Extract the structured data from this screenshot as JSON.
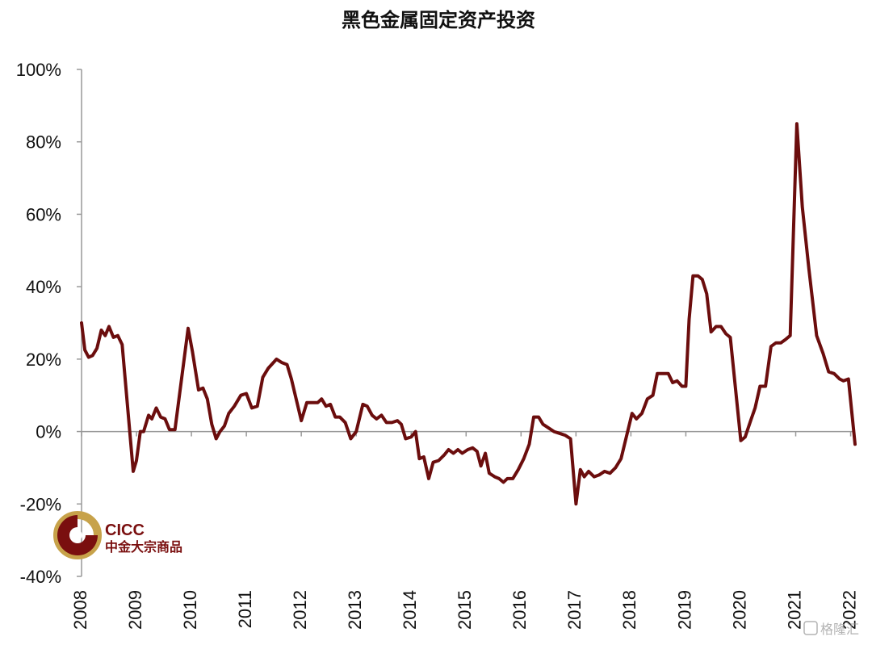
{
  "chart_data": {
    "type": "line",
    "title": "黑色金属固定资产投资",
    "xlabel": "",
    "ylabel": "",
    "y_unit": "%",
    "ylim": [
      -40,
      100
    ],
    "y_ticks": [
      100,
      80,
      60,
      40,
      20,
      0,
      -20,
      -40
    ],
    "y_tick_labels": [
      "100%",
      "80%",
      "60%",
      "40%",
      "20%",
      "0%",
      "-20%",
      "-40%"
    ],
    "x_ticks": [
      2008,
      2009,
      2010,
      2011,
      2012,
      2013,
      2014,
      2015,
      2016,
      2017,
      2018,
      2019,
      2020,
      2021,
      2022
    ],
    "x_tick_labels": [
      "2008",
      "2009",
      "2010",
      "2011",
      "2012",
      "2013",
      "2014",
      "2015",
      "2016",
      "2017",
      "2018",
      "2019",
      "2020",
      "2021",
      "2022"
    ],
    "xlim": [
      2008,
      2022.08
    ],
    "grid": false,
    "line_color": "#6b0d0d",
    "series": [
      {
        "name": "",
        "points": [
          [
            2008.0,
            30
          ],
          [
            2008.06,
            22.5
          ],
          [
            2008.13,
            20.5
          ],
          [
            2008.2,
            21
          ],
          [
            2008.28,
            23
          ],
          [
            2008.36,
            28
          ],
          [
            2008.43,
            26.5
          ],
          [
            2008.5,
            29
          ],
          [
            2008.58,
            26
          ],
          [
            2008.66,
            26.5
          ],
          [
            2008.74,
            24
          ],
          [
            2008.94,
            -11
          ],
          [
            2009.0,
            -8
          ],
          [
            2009.07,
            0
          ],
          [
            2009.13,
            0
          ],
          [
            2009.22,
            4.5
          ],
          [
            2009.28,
            3.5
          ],
          [
            2009.36,
            6.5
          ],
          [
            2009.44,
            4
          ],
          [
            2009.52,
            3.5
          ],
          [
            2009.6,
            0.5
          ],
          [
            2009.7,
            0.5
          ],
          [
            2009.94,
            28.5
          ],
          [
            2010.02,
            22
          ],
          [
            2010.13,
            11.5
          ],
          [
            2010.21,
            12
          ],
          [
            2010.29,
            9
          ],
          [
            2010.37,
            2
          ],
          [
            2010.45,
            -2
          ],
          [
            2010.52,
            0
          ],
          [
            2010.6,
            1.5
          ],
          [
            2010.68,
            5
          ],
          [
            2010.78,
            7
          ],
          [
            2010.9,
            10
          ],
          [
            2011.0,
            10.5
          ],
          [
            2011.1,
            6.5
          ],
          [
            2011.2,
            7
          ],
          [
            2011.3,
            15
          ],
          [
            2011.4,
            17.5
          ],
          [
            2011.55,
            20
          ],
          [
            2011.65,
            19
          ],
          [
            2011.74,
            18.5
          ],
          [
            2011.82,
            14.5
          ],
          [
            2012.0,
            3
          ],
          [
            2012.1,
            8
          ],
          [
            2012.21,
            8
          ],
          [
            2012.3,
            8
          ],
          [
            2012.37,
            9
          ],
          [
            2012.45,
            7
          ],
          [
            2012.53,
            7.5
          ],
          [
            2012.62,
            4
          ],
          [
            2012.7,
            4
          ],
          [
            2012.8,
            2.5
          ],
          [
            2012.9,
            -2
          ],
          [
            2013.0,
            0
          ],
          [
            2013.12,
            7.5
          ],
          [
            2013.2,
            7
          ],
          [
            2013.29,
            4.5
          ],
          [
            2013.37,
            3.5
          ],
          [
            2013.46,
            4.5
          ],
          [
            2013.55,
            2.5
          ],
          [
            2013.65,
            2.5
          ],
          [
            2013.75,
            3
          ],
          [
            2013.82,
            2
          ],
          [
            2013.9,
            -2
          ],
          [
            2014.0,
            -1.5
          ],
          [
            2014.08,
            0
          ],
          [
            2014.15,
            -7.5
          ],
          [
            2014.23,
            -7
          ],
          [
            2014.32,
            -13
          ],
          [
            2014.4,
            -8.5
          ],
          [
            2014.5,
            -8
          ],
          [
            2014.6,
            -6.5
          ],
          [
            2014.68,
            -5
          ],
          [
            2014.77,
            -6
          ],
          [
            2014.85,
            -5
          ],
          [
            2014.93,
            -6
          ],
          [
            2015.03,
            -5
          ],
          [
            2015.12,
            -4.5
          ],
          [
            2015.2,
            -5.5
          ],
          [
            2015.27,
            -9.5
          ],
          [
            2015.35,
            -6
          ],
          [
            2015.42,
            -11.5
          ],
          [
            2015.52,
            -12.5
          ],
          [
            2015.6,
            -13
          ],
          [
            2015.68,
            -14
          ],
          [
            2015.75,
            -13
          ],
          [
            2015.85,
            -13
          ],
          [
            2015.95,
            -10.5
          ],
          [
            2016.05,
            -7.5
          ],
          [
            2016.15,
            -3.5
          ],
          [
            2016.23,
            4
          ],
          [
            2016.32,
            4
          ],
          [
            2016.4,
            2
          ],
          [
            2016.5,
            1
          ],
          [
            2016.6,
            0
          ],
          [
            2016.7,
            -0.5
          ],
          [
            2016.8,
            -1
          ],
          [
            2016.9,
            -2
          ],
          [
            2017.0,
            -20
          ],
          [
            2017.08,
            -10.5
          ],
          [
            2017.15,
            -12.5
          ],
          [
            2017.23,
            -11
          ],
          [
            2017.33,
            -12.5
          ],
          [
            2017.42,
            -12
          ],
          [
            2017.52,
            -11
          ],
          [
            2017.62,
            -11.5
          ],
          [
            2017.72,
            -10
          ],
          [
            2017.82,
            -7.5
          ],
          [
            2018.02,
            5
          ],
          [
            2018.1,
            3.5
          ],
          [
            2018.2,
            5
          ],
          [
            2018.3,
            9
          ],
          [
            2018.4,
            10
          ],
          [
            2018.48,
            16
          ],
          [
            2018.58,
            16
          ],
          [
            2018.68,
            16
          ],
          [
            2018.76,
            13.5
          ],
          [
            2018.84,
            14
          ],
          [
            2018.93,
            12.5
          ],
          [
            2019.0,
            12.5
          ],
          [
            2019.06,
            31
          ],
          [
            2019.13,
            43
          ],
          [
            2019.22,
            43
          ],
          [
            2019.3,
            42
          ],
          [
            2019.38,
            38
          ],
          [
            2019.46,
            27.5
          ],
          [
            2019.55,
            29
          ],
          [
            2019.64,
            29
          ],
          [
            2019.73,
            27
          ],
          [
            2019.81,
            26
          ],
          [
            2020.0,
            -2.5
          ],
          [
            2020.08,
            -1.5
          ],
          [
            2020.18,
            3
          ],
          [
            2020.26,
            6.5
          ],
          [
            2020.35,
            12.5
          ],
          [
            2020.45,
            12.5
          ],
          [
            2020.55,
            23.5
          ],
          [
            2020.64,
            24.5
          ],
          [
            2020.73,
            24.5
          ],
          [
            2020.82,
            25.5
          ],
          [
            2020.9,
            26.5
          ],
          [
            2021.02,
            85
          ],
          [
            2021.12,
            62
          ],
          [
            2021.24,
            45
          ],
          [
            2021.38,
            26.5
          ],
          [
            2021.5,
            21.5
          ],
          [
            2021.6,
            16.5
          ],
          [
            2021.7,
            16
          ],
          [
            2021.8,
            14.5
          ],
          [
            2021.87,
            14
          ],
          [
            2021.96,
            14.5
          ],
          [
            2022.08,
            -3.5
          ]
        ]
      }
    ]
  },
  "branding": {
    "logo_text": "CICC",
    "logo_subtext": "中金大宗商品",
    "logo_colors": {
      "dark": "#7a0f0f",
      "gold": "#c7a24a"
    },
    "watermark": "格隆汇"
  }
}
